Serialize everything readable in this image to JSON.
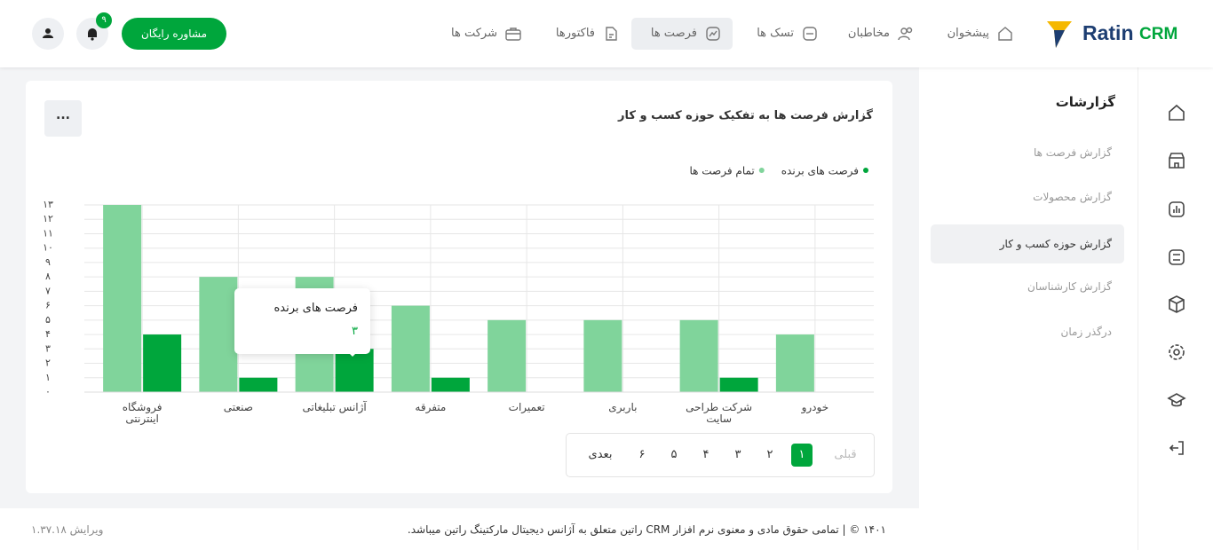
{
  "header": {
    "logo": {
      "brand": "Ratin",
      "suffix": "CRM"
    },
    "nav": [
      "پیشخوان",
      "مخاطبان",
      "تسک ها",
      "فرصت ها",
      "فاکتورها",
      "شرکت ها"
    ],
    "cta": "مشاوره رایگان",
    "notifications": "۹"
  },
  "sidebar": {
    "title": "گزارشات",
    "items": [
      "گزارش فرصت ها",
      "گزارش محصولات",
      "گزارش حوزه کسب و کار",
      "گزارش کارشناسان",
      "درگذر زمان"
    ]
  },
  "chart_data": {
    "type": "bar",
    "title": "گزارش فرصت ها به تفکیک حوزه کسب و کار",
    "categories": [
      "خودرو",
      "شرکت طراحی سایت",
      "باربری",
      "تعمیرات",
      "متفرقه",
      "آژانس تبلیغاتی",
      "صنعتی",
      "فروشگاه اینترنتی"
    ],
    "series": [
      {
        "name": "فرصت های برنده",
        "color": "#00a63c",
        "values": [
          0,
          1,
          0,
          0,
          1,
          3,
          1,
          4
        ]
      },
      {
        "name": "تمام فرصت ها",
        "color": "#80d49b",
        "values": [
          4,
          5,
          5,
          5,
          6,
          8,
          8,
          13
        ]
      }
    ],
    "ylim": [
      0,
      13
    ],
    "yticks": [
      {
        "value": 0,
        "label": "۰"
      },
      {
        "value": 1,
        "label": "۱"
      },
      {
        "value": 2,
        "label": "۲"
      },
      {
        "value": 3,
        "label": "۳"
      },
      {
        "value": 4,
        "label": "۴"
      },
      {
        "value": 5,
        "label": "۵"
      },
      {
        "value": 6,
        "label": "۶"
      },
      {
        "value": 7,
        "label": "۷"
      },
      {
        "value": 8,
        "label": "۸"
      },
      {
        "value": 9,
        "label": "۹"
      },
      {
        "value": 10,
        "label": "۱۰"
      },
      {
        "value": 11,
        "label": "۱۱"
      },
      {
        "value": 12,
        "label": "۱۲"
      },
      {
        "value": 13,
        "label": "۱۳"
      }
    ],
    "grid": true,
    "tooltip": {
      "title": "فرصت های برنده",
      "text": "۳"
    }
  },
  "pagination": {
    "prev": "قبلی",
    "pages": [
      "۱",
      "۲",
      "۳",
      "۴",
      "۵",
      "۶"
    ],
    "next": "بعدی"
  },
  "footer": {
    "copyright": "۱۴۰۱ © | تمامی حقوق مادی و معنوی نرم افزار CRM راتین متعلق به آژانس دیجیتال مارکتینگ راتین میباشد.",
    "version": "ویرایش ۱.۳۷.۱۸"
  }
}
